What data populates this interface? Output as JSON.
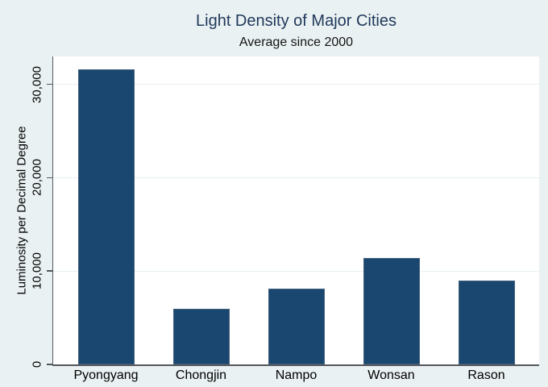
{
  "chart_data": {
    "type": "bar",
    "title": "Light Density of Major Cities",
    "subtitle": "Average since 2000",
    "ylabel": "Luminosity per Decimal Degree",
    "xlabel": "",
    "categories": [
      "Pyongyang",
      "Chongjin",
      "Nampo",
      "Wonsan",
      "Rason"
    ],
    "values": [
      31600,
      6000,
      8100,
      11400,
      9000
    ],
    "ylim": [
      0,
      33000
    ],
    "yticks": [
      0,
      10000,
      20000,
      30000
    ],
    "ytick_labels": [
      "0",
      "10,000",
      "20,000",
      "30,000"
    ],
    "grid": true,
    "legend_position": "none",
    "colors": {
      "bar": "#1a476f",
      "bar_border": "#42607c",
      "background": "#eaf1f2",
      "plot_background": "#ffffff",
      "gridline": "#e7eef1",
      "axis": "#52575b",
      "title": "#21395c",
      "text": "#000000"
    }
  }
}
